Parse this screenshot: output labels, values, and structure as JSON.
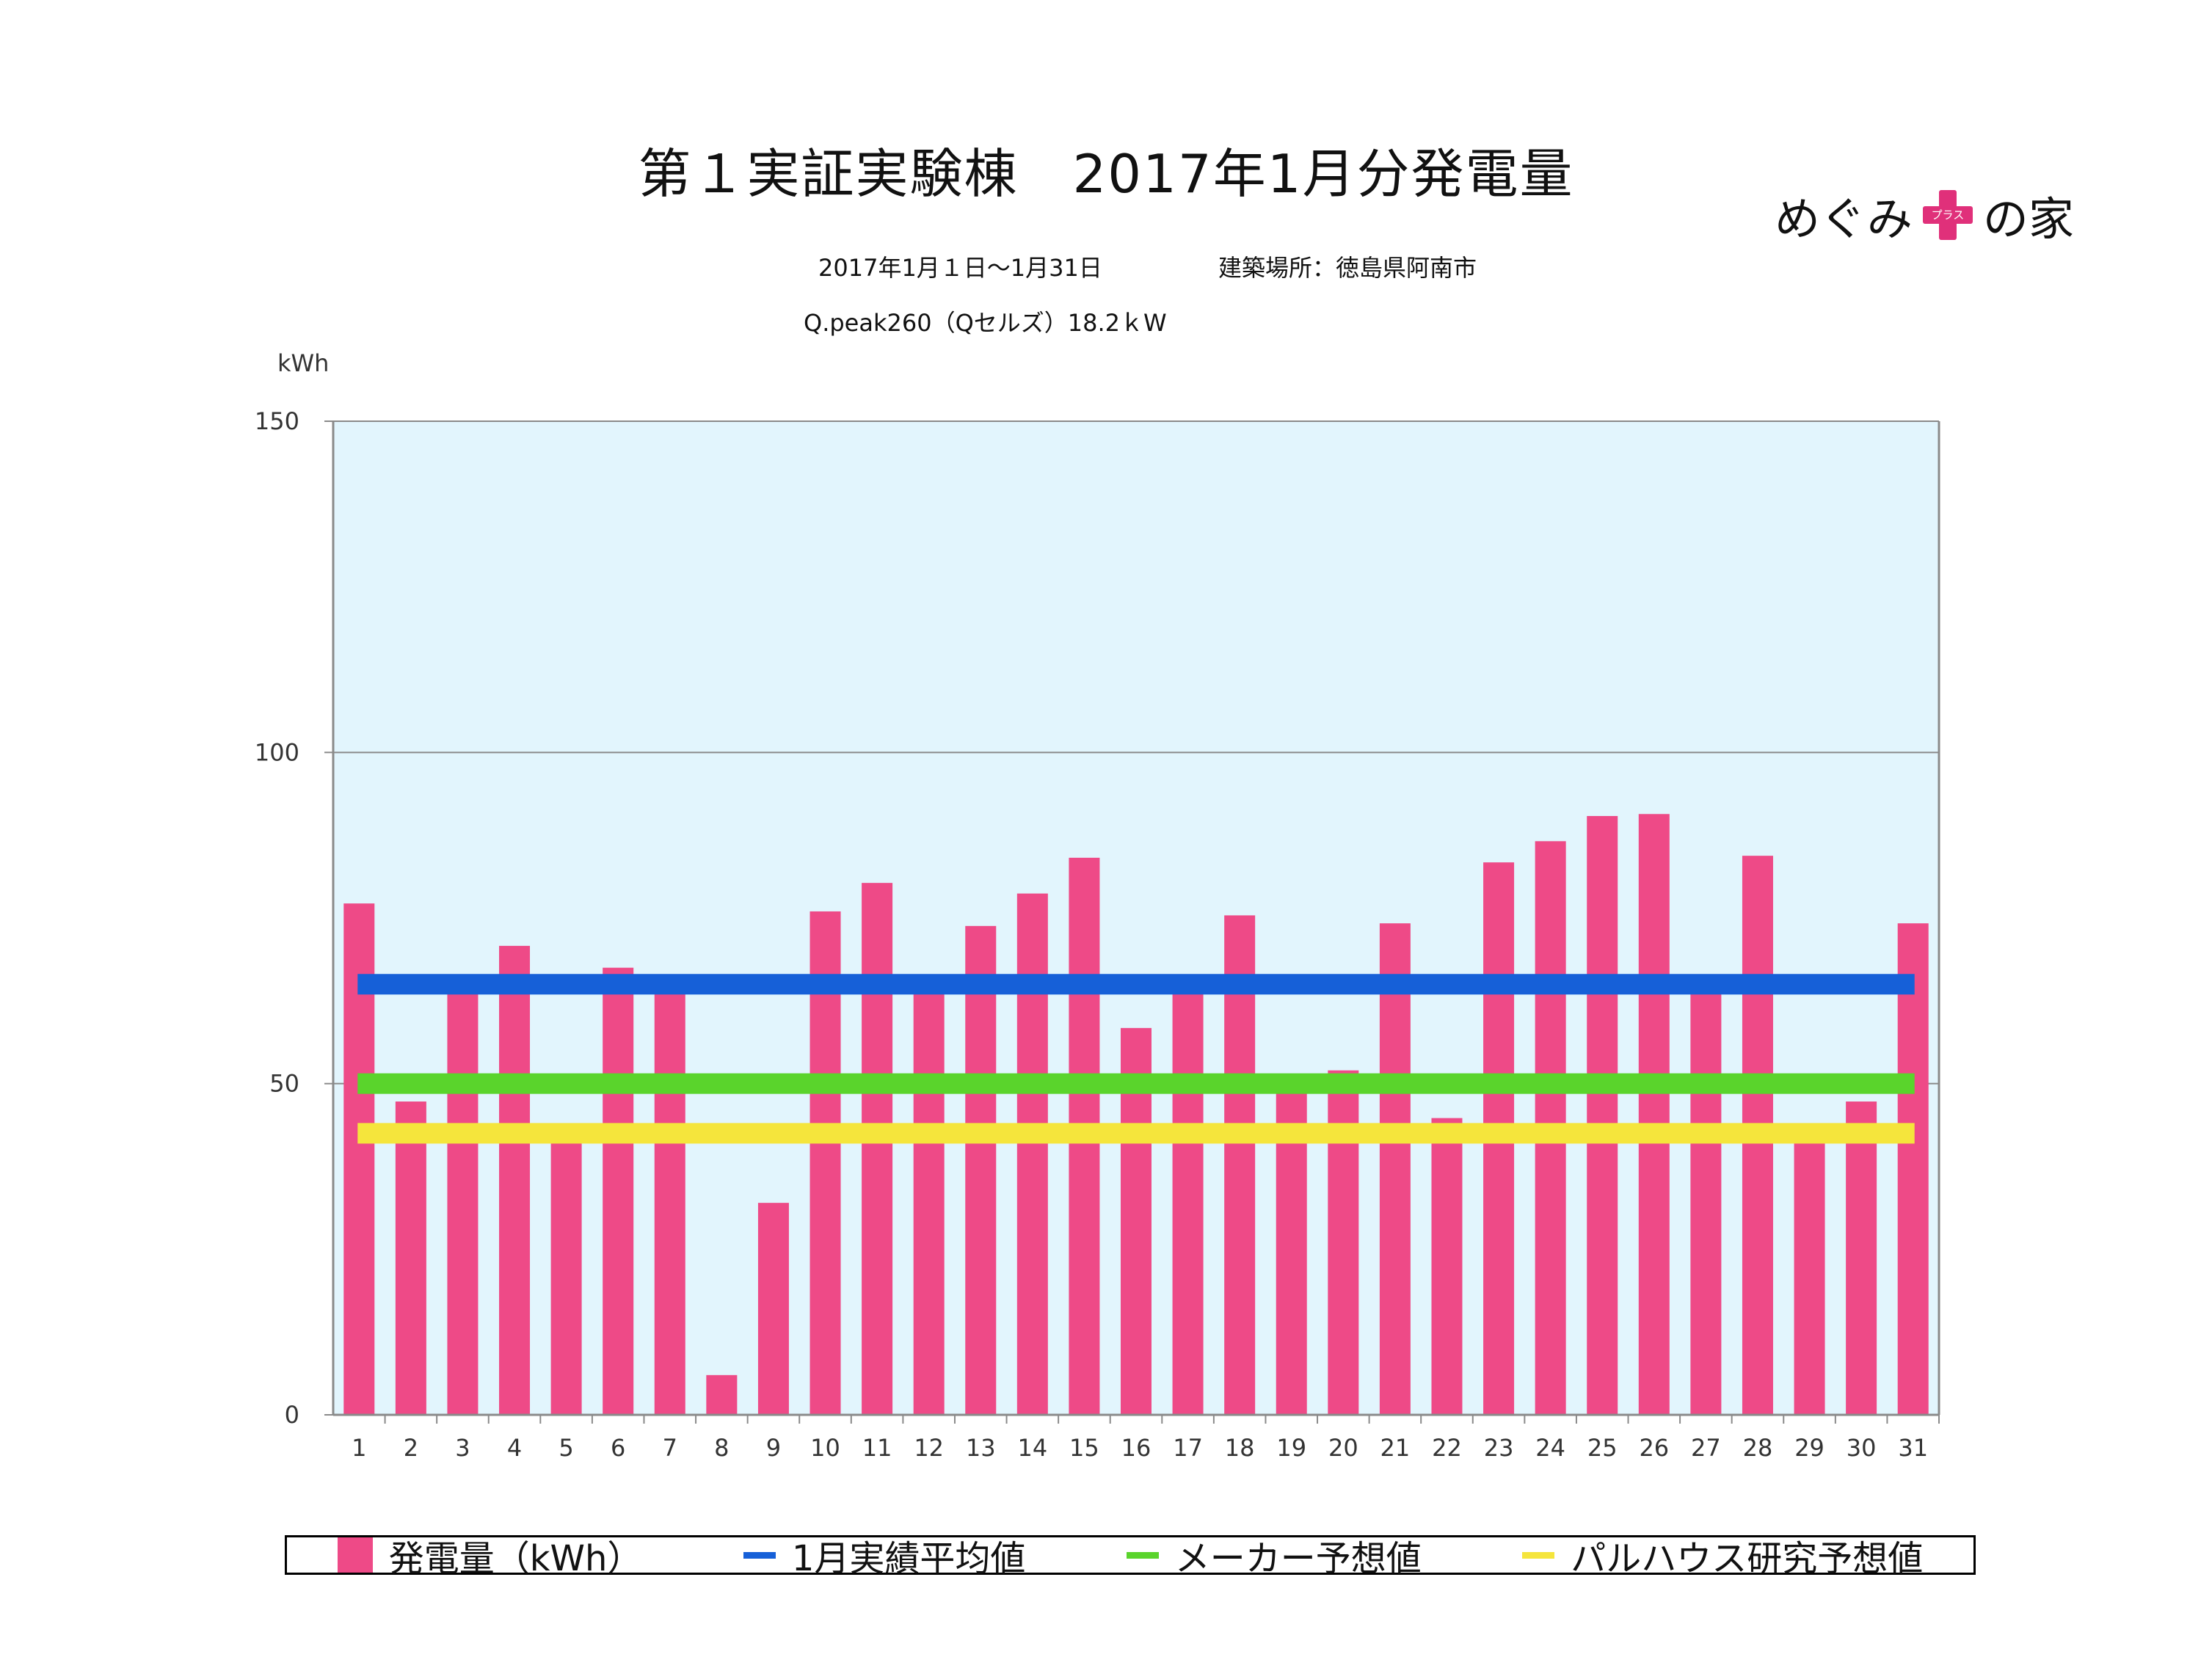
{
  "title": "第１実証実験棟　2017年1月分発電量",
  "logo": {
    "text_before": "めぐみ",
    "plus_text": "プラス",
    "text_after": "の家",
    "color": "#e0307a"
  },
  "subtitle": {
    "period": "2017年1月１日〜1月31日",
    "location": "建築場所：徳島県阿南市",
    "panel": "Q.peak260（Qセルズ）18.2ｋW"
  },
  "chart_data": {
    "type": "bar",
    "ylabel": "kWh",
    "ylim": [
      0,
      150
    ],
    "yticks": [
      0,
      50,
      100,
      150
    ],
    "grid": "horizontal",
    "plot_background": "#e2f5fd",
    "categories": [
      "1",
      "2",
      "3",
      "4",
      "5",
      "6",
      "7",
      "8",
      "9",
      "10",
      "11",
      "12",
      "13",
      "14",
      "15",
      "16",
      "17",
      "18",
      "19",
      "20",
      "21",
      "22",
      "23",
      "24",
      "25",
      "26",
      "27",
      "28",
      "29",
      "30",
      "31"
    ],
    "series": [
      {
        "name": "発電量（kWh）",
        "color": "#ee4a87",
        "values": [
          77.2,
          47.3,
          64.5,
          70.8,
          41.5,
          67.5,
          64.5,
          6.0,
          32.0,
          76.0,
          80.3,
          64.5,
          73.8,
          78.7,
          84.1,
          58.4,
          64.5,
          75.4,
          48.5,
          52.0,
          74.2,
          44.8,
          83.4,
          86.6,
          90.4,
          90.7,
          64.5,
          84.4,
          41.5,
          47.3,
          74.2
        ]
      }
    ],
    "reference_lines": [
      {
        "name": "1月実績平均値",
        "value": 65.0,
        "color": "#1660d8"
      },
      {
        "name": "メーカー予想値",
        "value": 50.0,
        "color": "#5ad42c"
      },
      {
        "name": "パルハウス研究予想値",
        "value": 42.5,
        "color": "#f5e53c"
      }
    ]
  }
}
